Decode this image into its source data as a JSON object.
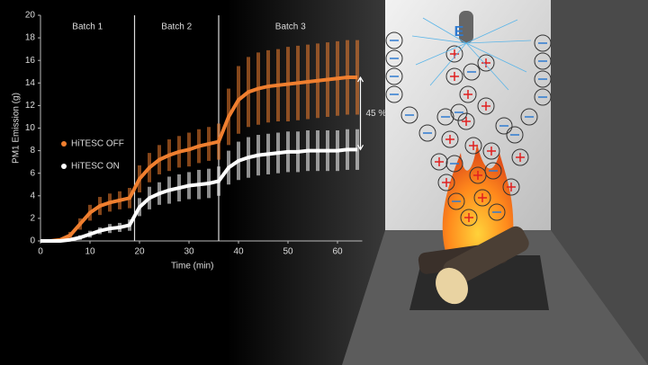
{
  "chart_data": {
    "type": "line",
    "xlabel": "Time (min)",
    "ylabel": "PM1 Emission (g)",
    "x": [
      0,
      2,
      4,
      6,
      8,
      10,
      12,
      14,
      16,
      18,
      20,
      22,
      24,
      26,
      28,
      30,
      32,
      34,
      36,
      38,
      40,
      42,
      44,
      46,
      48,
      50,
      52,
      54,
      56,
      58,
      60,
      62,
      64
    ],
    "series": [
      {
        "name": "HiTESC OFF",
        "color": "#f07f2f",
        "values": [
          0,
          0,
          0.1,
          0.5,
          1.5,
          2.5,
          3.1,
          3.4,
          3.6,
          3.8,
          5.5,
          6.5,
          7.2,
          7.6,
          7.9,
          8.1,
          8.4,
          8.6,
          8.8,
          11,
          12.5,
          13.2,
          13.5,
          13.7,
          13.8,
          13.9,
          14.0,
          14.1,
          14.2,
          14.3,
          14.4,
          14.5,
          14.5
        ],
        "errors": [
          0,
          0,
          0.1,
          0.3,
          0.5,
          0.7,
          0.8,
          0.8,
          0.8,
          0.9,
          1.2,
          1.3,
          1.3,
          1.4,
          1.4,
          1.5,
          1.5,
          1.5,
          1.6,
          2.5,
          3,
          3.1,
          3.2,
          3.2,
          3.2,
          3.3,
          3.3,
          3.3,
          3.3,
          3.3,
          3.3,
          3.3,
          3.3
        ]
      },
      {
        "name": "HiTESC ON",
        "color": "#ffffff",
        "values": [
          0,
          0,
          0,
          0.1,
          0.3,
          0.6,
          0.9,
          1.1,
          1.2,
          1.4,
          3,
          3.8,
          4.2,
          4.5,
          4.7,
          4.9,
          5.0,
          5.1,
          5.3,
          6.5,
          7.1,
          7.4,
          7.6,
          7.7,
          7.8,
          7.9,
          7.9,
          8.0,
          8.0,
          8.0,
          8.0,
          8.1,
          8.1
        ],
        "errors": [
          0,
          0,
          0,
          0.1,
          0.2,
          0.3,
          0.3,
          0.4,
          0.4,
          0.5,
          0.8,
          1,
          1,
          1.2,
          1.2,
          1.2,
          1.3,
          1.3,
          1.3,
          1.5,
          1.7,
          1.8,
          1.8,
          1.8,
          1.8,
          1.8,
          1.8,
          1.8,
          1.8,
          1.8,
          1.8,
          1.8,
          1.8
        ]
      }
    ],
    "batch_boundaries": [
      19,
      36
    ],
    "batch_labels": [
      "Batch 1",
      "Batch 2",
      "Batch 3"
    ],
    "annotation": "45 %",
    "xlim": [
      0,
      65
    ],
    "xticks": [
      0,
      10,
      20,
      30,
      40,
      50,
      60
    ],
    "ylim": [
      0,
      20
    ],
    "yticks": [
      0,
      2,
      4,
      6,
      8,
      10,
      12,
      14,
      16,
      18,
      20
    ]
  },
  "illustration": {
    "field_label": "E"
  }
}
